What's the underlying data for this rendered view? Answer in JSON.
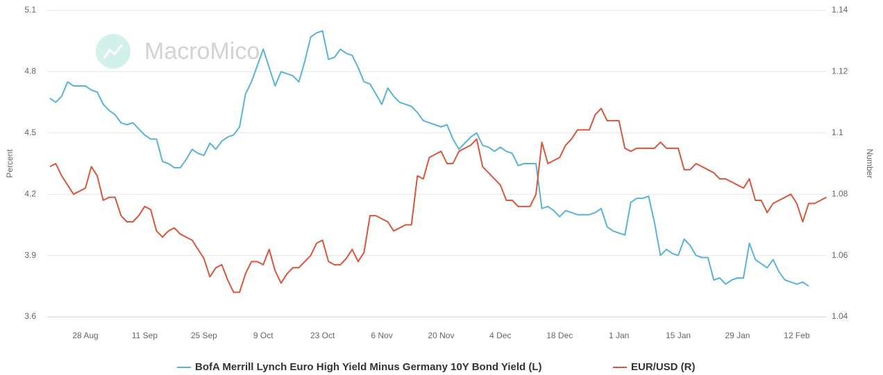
{
  "chart_data": {
    "type": "line",
    "watermark": "MacroMico",
    "ylabel": "Percent",
    "y2label": "Number",
    "ylim": [
      3.6,
      5.1
    ],
    "yticks": [
      3.6,
      3.9,
      4.2,
      4.5,
      4.8,
      5.1
    ],
    "y2lim": [
      1.04,
      1.14
    ],
    "y2ticks": [
      1.04,
      1.06,
      1.08,
      1.1,
      1.12,
      1.14
    ],
    "grid": true,
    "legend": "bottom",
    "categories": [
      null,
      null,
      null,
      null,
      null,
      null,
      "28 Aug",
      null,
      null,
      null,
      null,
      null,
      null,
      null,
      null,
      null,
      "11 Sep",
      null,
      null,
      null,
      null,
      null,
      null,
      null,
      null,
      null,
      "25 Sep",
      null,
      null,
      null,
      null,
      null,
      null,
      null,
      null,
      null,
      "9 Oct",
      null,
      null,
      null,
      null,
      null,
      null,
      null,
      null,
      null,
      "23 Oct",
      null,
      null,
      null,
      null,
      null,
      null,
      null,
      null,
      null,
      "6 Nov",
      null,
      null,
      null,
      null,
      null,
      null,
      null,
      null,
      null,
      "20 Nov",
      null,
      null,
      null,
      null,
      null,
      null,
      null,
      null,
      null,
      "4 Dec",
      null,
      null,
      null,
      null,
      null,
      null,
      null,
      null,
      null,
      "18 Dec",
      null,
      null,
      null,
      null,
      null,
      null,
      null,
      null,
      null,
      "1 Jan",
      null,
      null,
      null,
      null,
      null,
      null,
      null,
      null,
      null,
      "15 Jan",
      null,
      null,
      null,
      null,
      null,
      null,
      null,
      null,
      null,
      "29 Jan",
      null,
      null,
      null,
      null,
      null,
      null,
      null,
      null,
      null,
      "12 Feb",
      null,
      null,
      null,
      null,
      null
    ],
    "series": [
      {
        "name": "BofA Merrill Lynch Euro High Yield Minus Germany 10Y Bond Yield (L)",
        "color": "#58b3d9",
        "axis": "y",
        "values": [
          4.67,
          4.65,
          4.68,
          4.75,
          4.73,
          4.73,
          4.73,
          4.71,
          4.7,
          4.64,
          4.61,
          4.59,
          4.55,
          4.54,
          4.55,
          4.52,
          4.49,
          4.47,
          4.47,
          4.36,
          4.35,
          4.33,
          4.33,
          4.37,
          4.42,
          4.4,
          4.39,
          4.45,
          4.42,
          4.46,
          4.48,
          4.49,
          4.53,
          4.69,
          4.75,
          4.83,
          4.91,
          4.82,
          4.73,
          4.8,
          4.79,
          4.78,
          4.75,
          4.85,
          4.97,
          4.99,
          5.0,
          4.86,
          4.87,
          4.91,
          4.89,
          4.88,
          4.82,
          4.75,
          4.74,
          4.69,
          4.64,
          4.72,
          4.68,
          4.65,
          4.64,
          4.63,
          4.6,
          4.56,
          4.55,
          4.54,
          4.53,
          4.54,
          4.47,
          4.42,
          4.45,
          4.48,
          4.5,
          4.44,
          4.43,
          4.41,
          4.43,
          4.41,
          4.4,
          4.34,
          4.35,
          4.35,
          4.35,
          4.13,
          4.14,
          4.12,
          4.09,
          4.12,
          4.11,
          4.1,
          4.1,
          4.1,
          4.11,
          4.13,
          4.04,
          4.02,
          4.01,
          4.0,
          4.16,
          4.18,
          4.18,
          4.19,
          4.06,
          3.9,
          3.93,
          3.91,
          3.9,
          3.98,
          3.95,
          3.9,
          3.89,
          3.89,
          3.78,
          3.79,
          3.76,
          3.78,
          3.79,
          3.79,
          3.96,
          3.88,
          3.86,
          3.84,
          3.88,
          3.82,
          3.78,
          3.77,
          3.76,
          3.77,
          3.75,
          null,
          null,
          null
        ]
      },
      {
        "name": "EUR/USD (R)",
        "color": "#d9553b",
        "axis": "y2",
        "values": [
          1.089,
          1.09,
          1.086,
          1.083,
          1.08,
          1.081,
          1.082,
          1.089,
          1.086,
          1.078,
          1.079,
          1.079,
          1.073,
          1.071,
          1.071,
          1.073,
          1.076,
          1.075,
          1.068,
          1.066,
          1.068,
          1.069,
          1.067,
          1.066,
          1.065,
          1.062,
          1.059,
          1.053,
          1.056,
          1.057,
          1.052,
          1.048,
          1.048,
          1.054,
          1.058,
          1.058,
          1.057,
          1.062,
          1.055,
          1.051,
          1.054,
          1.056,
          1.056,
          1.058,
          1.06,
          1.064,
          1.065,
          1.058,
          1.057,
          1.057,
          1.059,
          1.062,
          1.058,
          1.061,
          1.073,
          1.073,
          1.072,
          1.071,
          1.068,
          1.069,
          1.07,
          1.07,
          1.086,
          1.085,
          1.092,
          1.093,
          1.094,
          1.09,
          1.09,
          1.094,
          1.095,
          1.096,
          1.098,
          1.089,
          1.087,
          1.085,
          1.083,
          1.078,
          1.078,
          1.076,
          1.076,
          1.076,
          1.08,
          1.097,
          1.09,
          1.091,
          1.092,
          1.096,
          1.098,
          1.101,
          1.101,
          1.101,
          1.106,
          1.108,
          1.104,
          1.104,
          1.104,
          1.095,
          1.094,
          1.095,
          1.095,
          1.095,
          1.095,
          1.097,
          1.095,
          1.095,
          1.095,
          1.088,
          1.088,
          1.09,
          1.089,
          1.088,
          1.087,
          1.085,
          1.085,
          1.084,
          1.083,
          1.082,
          1.085,
          1.078,
          1.078,
          1.074,
          1.077,
          1.078,
          1.079,
          1.08,
          1.077,
          1.071,
          1.077,
          1.077,
          1.078,
          1.079
        ]
      }
    ]
  }
}
